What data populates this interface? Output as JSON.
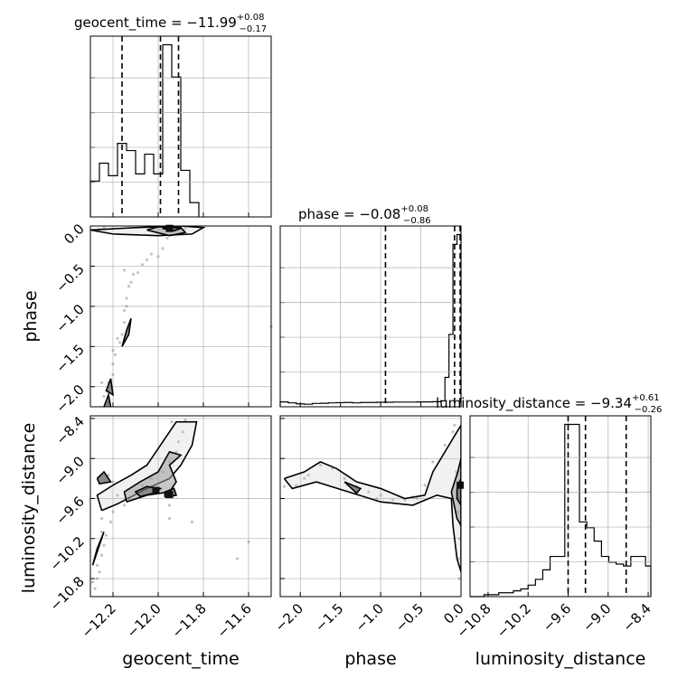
{
  "chart_data": {
    "type": "corner",
    "parameters": [
      {
        "name": "geocent_time",
        "label": "geocent_time",
        "range": [
          -12.3,
          -11.5
        ]
      },
      {
        "name": "phase",
        "label": "phase",
        "range": [
          -2.25,
          0.0
        ]
      },
      {
        "name": "luminosity_distance",
        "label": "luminosity_distance",
        "range": [
          -11.07,
          -8.36
        ]
      }
    ],
    "titles": [
      {
        "param": "geocent_time",
        "base": "geocent_time = −11.99",
        "plus": "+0.08",
        "minus": "−0.17"
      },
      {
        "param": "phase",
        "base": "phase = −0.08",
        "plus": "+0.08",
        "minus": "−0.86"
      },
      {
        "param": "luminosity_distance",
        "base": "luminosity_distance = −9.34",
        "plus": "+0.61",
        "minus": "−0.26"
      }
    ],
    "quantiles": {
      "geocent_time": [
        -12.16,
        -11.99,
        -11.91
      ],
      "phase": [
        -0.94,
        -0.08,
        0.0
      ],
      "luminosity_distance": [
        -9.6,
        -9.34,
        -8.73
      ]
    },
    "ticks": {
      "geocent_time": [
        "−12.2",
        "−12.0",
        "−11.8",
        "−11.6"
      ],
      "phase": [
        "−2.0",
        "−1.5",
        "−1.0",
        "−0.5",
        "0.0"
      ],
      "luminosity_distance": [
        "−10.8",
        "−10.2",
        "−9.6",
        "−9.0",
        "−8.4"
      ]
    },
    "tick_values": {
      "geocent_time": [
        -12.2,
        -12.0,
        -11.8,
        -11.6
      ],
      "phase": [
        -2.0,
        -1.5,
        -1.0,
        -0.5,
        0.0
      ],
      "luminosity_distance": [
        -10.8,
        -10.2,
        -9.6,
        -9.0,
        -8.4
      ]
    },
    "hist_geocent_time": {
      "edges": [
        -12.3,
        -12.26,
        -12.22,
        -12.18,
        -12.14,
        -12.1,
        -12.06,
        -12.02,
        -11.98,
        -11.94,
        -11.9,
        -11.86,
        -11.82
      ],
      "counts": [
        0.2,
        0.3,
        0.23,
        0.41,
        0.37,
        0.24,
        0.35,
        0.24,
        0.96,
        0.78,
        0.26,
        0.08
      ]
    },
    "hist_phase": {
      "edges": [
        -2.25,
        -2.15,
        -2.05,
        -1.95,
        -1.85,
        -1.75,
        -1.65,
        -1.55,
        -1.45,
        -1.35,
        -1.25,
        -1.15,
        -1.05,
        -0.95,
        -0.85,
        -0.75,
        -0.65,
        -0.55,
        -0.45,
        -0.35,
        -0.25,
        -0.2,
        -0.15,
        -0.1,
        -0.05,
        0.0
      ],
      "counts": [
        0.025,
        0.02,
        0.015,
        0.013,
        0.017,
        0.018,
        0.02,
        0.021,
        0.022,
        0.02,
        0.022,
        0.022,
        0.023,
        0.023,
        0.024,
        0.024,
        0.024,
        0.025,
        0.025,
        0.026,
        0.03,
        0.15,
        0.37,
        0.83,
        0.88
      ]
    },
    "hist_luminosity_distance": {
      "edges": [
        -11.07,
        -10.97,
        -10.86,
        -10.75,
        -10.64,
        -10.53,
        -10.42,
        -10.31,
        -10.2,
        -10.09,
        -9.98,
        -9.87,
        -9.76,
        -9.65,
        -9.54,
        -9.43,
        -9.32,
        -9.21,
        -9.1,
        -8.99,
        -8.88,
        -8.77,
        -8.66,
        -8.55,
        -8.44,
        -8.36
      ],
      "counts": [
        0.0,
        0.0,
        0.01,
        0.01,
        0.02,
        0.02,
        0.03,
        0.04,
        0.06,
        0.09,
        0.14,
        0.21,
        0.21,
        0.9,
        0.9,
        0.39,
        0.36,
        0.29,
        0.21,
        0.18,
        0.17,
        0.16,
        0.21,
        0.21,
        0.16
      ]
    },
    "scatter_phase_vs_geocent_time": [
      [
        -12.22,
        -2.2
      ],
      [
        -12.23,
        -2.05
      ],
      [
        -12.22,
        -1.95
      ],
      [
        -12.2,
        -1.85
      ],
      [
        -12.2,
        -1.72
      ],
      [
        -12.19,
        -1.6
      ],
      [
        -12.17,
        -1.45
      ],
      [
        -12.16,
        -1.35
      ],
      [
        -12.15,
        -1.2
      ],
      [
        -12.15,
        -1.05
      ],
      [
        -12.14,
        -0.9
      ],
      [
        -12.13,
        -0.75
      ],
      [
        -12.11,
        -0.6
      ],
      [
        -12.07,
        -0.48
      ],
      [
        -12.0,
        -0.38
      ],
      [
        -11.98,
        -0.28
      ],
      [
        -11.96,
        -0.15
      ],
      [
        -11.93,
        -0.05
      ],
      [
        -11.98,
        -0.03
      ],
      [
        -11.92,
        -0.02
      ],
      [
        -12.05,
        -0.42
      ],
      [
        -12.03,
        -0.35
      ],
      [
        -12.2,
        -1.55
      ],
      [
        -12.18,
        -1.4
      ],
      [
        -12.25,
        -1.95
      ],
      [
        -12.24,
        -2.12
      ],
      [
        -12.12,
        -0.7
      ],
      [
        -12.09,
        -0.58
      ],
      [
        -12.14,
        -1.0
      ],
      [
        -11.5,
        -1.25
      ],
      [
        -12.15,
        -0.55
      ],
      [
        -11.9,
        -0.01
      ],
      [
        -11.88,
        -0.03
      ],
      [
        -12.24,
        -0.02
      ],
      [
        -12.26,
        -0.04
      ]
    ],
    "scatter_lum_vs_geocent_time": [
      [
        -12.28,
        -10.95
      ],
      [
        -12.27,
        -10.8
      ],
      [
        -12.27,
        -10.6
      ],
      [
        -12.25,
        -10.45
      ],
      [
        -12.24,
        -10.3
      ],
      [
        -12.23,
        -10.15
      ],
      [
        -12.21,
        -9.95
      ],
      [
        -12.2,
        -9.8
      ],
      [
        -12.15,
        -9.7
      ],
      [
        -12.13,
        -9.6
      ],
      [
        -12.1,
        -9.5
      ],
      [
        -12.07,
        -9.4
      ],
      [
        -12.03,
        -9.3
      ],
      [
        -11.98,
        -9.2
      ],
      [
        -11.95,
        -9.05
      ],
      [
        -11.92,
        -8.9
      ],
      [
        -11.91,
        -8.75
      ],
      [
        -11.89,
        -8.6
      ],
      [
        -12.2,
        -9.35
      ],
      [
        -12.22,
        -9.25
      ],
      [
        -12.18,
        -9.55
      ],
      [
        -12.25,
        -9.9
      ],
      [
        -12.25,
        -10.1
      ],
      [
        -12.26,
        -10.7
      ],
      [
        -11.97,
        -9.55
      ],
      [
        -11.95,
        -9.7
      ],
      [
        -12.01,
        -9.45
      ],
      [
        -11.85,
        -9.95
      ],
      [
        -11.95,
        -9.9
      ],
      [
        -11.6,
        -10.25
      ],
      [
        -11.65,
        -10.5
      ],
      [
        -11.94,
        -8.45
      ],
      [
        -11.88,
        -8.42
      ],
      [
        -12.29,
        -10.85
      ]
    ],
    "scatter_lum_vs_phase": [
      [
        -2.2,
        -9.42
      ],
      [
        -2.05,
        -9.4
      ],
      [
        -1.9,
        -9.25
      ],
      [
        -1.75,
        -9.1
      ],
      [
        -1.6,
        -9.15
      ],
      [
        -1.45,
        -9.3
      ],
      [
        -1.3,
        -9.42
      ],
      [
        -1.15,
        -9.5
      ],
      [
        -1.0,
        -9.55
      ],
      [
        -0.85,
        -9.62
      ],
      [
        -0.7,
        -9.62
      ],
      [
        -0.55,
        -9.6
      ],
      [
        -0.45,
        -9.4
      ],
      [
        -0.35,
        -9.05
      ],
      [
        -0.2,
        -8.8
      ],
      [
        -0.1,
        -8.6
      ],
      [
        -0.05,
        -9.4
      ],
      [
        -0.03,
        -9.8
      ],
      [
        -0.02,
        -10.2
      ],
      [
        -0.03,
        -10.5
      ],
      [
        -0.02,
        -10.8
      ],
      [
        -0.04,
        -9.6
      ],
      [
        -0.06,
        -9.2
      ],
      [
        -0.01,
        -10.0
      ],
      [
        -0.08,
        -8.5
      ],
      [
        -1.95,
        -9.3
      ],
      [
        -1.05,
        -9.6
      ],
      [
        -0.6,
        -9.58
      ]
    ],
    "contour_phase_vs_geocent_time": [
      [
        [
          -12.3,
          -0.05
        ],
        [
          -12.2,
          -0.1
        ],
        [
          -12.0,
          -0.12
        ],
        [
          -11.85,
          -0.1
        ],
        [
          -11.8,
          -0.02
        ],
        [
          -11.9,
          0.0
        ],
        [
          -12.1,
          -0.02
        ],
        [
          -12.3,
          -0.05
        ]
      ],
      [
        [
          -12.05,
          -0.05
        ],
        [
          -11.95,
          -0.12
        ],
        [
          -11.88,
          -0.08
        ],
        [
          -11.9,
          -0.02
        ],
        [
          -12.0,
          -0.01
        ],
        [
          -12.05,
          -0.05
        ]
      ],
      [
        [
          -11.98,
          -0.03
        ],
        [
          -11.93,
          -0.06
        ],
        [
          -11.9,
          -0.03
        ],
        [
          -11.95,
          -0.01
        ],
        [
          -11.98,
          -0.03
        ]
      ],
      [
        [
          -12.16,
          -1.5
        ],
        [
          -12.13,
          -1.35
        ],
        [
          -12.12,
          -1.15
        ],
        [
          -12.14,
          -1.3
        ],
        [
          -12.16,
          -1.5
        ]
      ],
      [
        [
          -12.23,
          -2.05
        ],
        [
          -12.21,
          -1.9
        ],
        [
          -12.2,
          -2.1
        ],
        [
          -12.23,
          -2.05
        ]
      ],
      [
        [
          -12.24,
          -2.25
        ],
        [
          -12.22,
          -2.1
        ],
        [
          -12.21,
          -2.25
        ]
      ]
    ],
    "contour_lum_vs_geocent_time": [
      [
        [
          -12.25,
          -9.78
        ],
        [
          -12.18,
          -9.68
        ],
        [
          -12.05,
          -9.45
        ],
        [
          -11.95,
          -9.3
        ],
        [
          -11.9,
          -9.1
        ],
        [
          -11.85,
          -8.8
        ],
        [
          -11.83,
          -8.45
        ],
        [
          -11.92,
          -8.45
        ],
        [
          -11.98,
          -8.75
        ],
        [
          -12.05,
          -9.1
        ],
        [
          -12.12,
          -9.25
        ],
        [
          -12.2,
          -9.4
        ],
        [
          -12.27,
          -9.55
        ],
        [
          -12.25,
          -9.78
        ]
      ],
      [
        [
          -12.14,
          -9.65
        ],
        [
          -12.05,
          -9.55
        ],
        [
          -11.95,
          -9.5
        ],
        [
          -11.92,
          -9.35
        ],
        [
          -11.95,
          -9.1
        ],
        [
          -11.9,
          -8.95
        ],
        [
          -11.95,
          -8.9
        ],
        [
          -12.0,
          -9.2
        ],
        [
          -12.08,
          -9.35
        ],
        [
          -12.15,
          -9.5
        ],
        [
          -12.14,
          -9.65
        ]
      ],
      [
        [
          -12.08,
          -9.57
        ],
        [
          -12.02,
          -9.52
        ],
        [
          -11.99,
          -9.45
        ],
        [
          -12.05,
          -9.42
        ],
        [
          -12.1,
          -9.5
        ],
        [
          -12.08,
          -9.57
        ]
      ],
      [
        [
          -11.97,
          -9.58
        ],
        [
          -11.92,
          -9.55
        ],
        [
          -11.93,
          -9.45
        ],
        [
          -11.97,
          -9.5
        ],
        [
          -11.97,
          -9.58
        ]
      ],
      [
        [
          -12.29,
          -10.6
        ],
        [
          -12.26,
          -10.3
        ],
        [
          -12.24,
          -10.1
        ],
        [
          -12.27,
          -10.35
        ],
        [
          -12.29,
          -10.6
        ]
      ],
      [
        [
          -12.27,
          -9.3
        ],
        [
          -12.24,
          -9.2
        ],
        [
          -12.21,
          -9.35
        ],
        [
          -12.26,
          -9.38
        ],
        [
          -12.27,
          -9.3
        ]
      ]
    ],
    "contour_lum_vs_phase": [
      [
        [
          -2.2,
          -9.3
        ],
        [
          -1.95,
          -9.2
        ],
        [
          -1.75,
          -9.05
        ],
        [
          -1.55,
          -9.15
        ],
        [
          -1.3,
          -9.35
        ],
        [
          -1.0,
          -9.45
        ],
        [
          -0.7,
          -9.6
        ],
        [
          -0.45,
          -9.55
        ],
        [
          -0.35,
          -9.2
        ],
        [
          -0.2,
          -8.9
        ],
        [
          -0.05,
          -8.6
        ],
        [
          0.0,
          -8.5
        ],
        [
          0.0,
          -10.7
        ],
        [
          -0.05,
          -10.5
        ],
        [
          -0.1,
          -10.0
        ],
        [
          -0.12,
          -9.6
        ],
        [
          -0.3,
          -9.55
        ],
        [
          -0.6,
          -9.7
        ],
        [
          -1.0,
          -9.65
        ],
        [
          -1.4,
          -9.5
        ],
        [
          -1.8,
          -9.35
        ],
        [
          -2.1,
          -9.45
        ],
        [
          -2.2,
          -9.3
        ]
      ],
      [
        [
          -0.12,
          -9.5
        ],
        [
          -0.04,
          -9.2
        ],
        [
          0.0,
          -9.0
        ],
        [
          0.0,
          -10.0
        ],
        [
          -0.05,
          -9.9
        ],
        [
          -0.12,
          -9.5
        ]
      ],
      [
        [
          -0.05,
          -9.45
        ],
        [
          0.0,
          -9.3
        ],
        [
          0.0,
          -9.7
        ],
        [
          -0.05,
          -9.6
        ],
        [
          -0.05,
          -9.45
        ]
      ],
      [
        [
          -1.45,
          -9.35
        ],
        [
          -1.25,
          -9.45
        ],
        [
          -1.3,
          -9.52
        ],
        [
          -1.45,
          -9.35
        ]
      ]
    ],
    "hot_spots": {
      "phase_vs_geocent_time": [
        [
          -11.95,
          -0.03
        ]
      ],
      "lum_vs_geocent_time": [
        [
          -12.01,
          -9.48
        ],
        [
          -11.95,
          -9.54
        ]
      ],
      "lum_vs_phase": [
        [
          -0.01,
          -9.4
        ]
      ]
    }
  }
}
